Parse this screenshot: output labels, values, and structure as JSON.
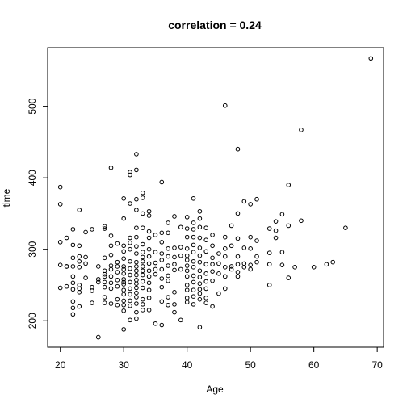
{
  "chart_data": {
    "type": "scatter",
    "title": "correlation = 0.24",
    "xlabel": "Age",
    "ylabel": "time",
    "xlim": [
      18.0,
      71.0
    ],
    "ylim": [
      163,
      582
    ],
    "xticks": [
      20,
      30,
      40,
      50,
      60,
      70
    ],
    "yticks": [
      200,
      300,
      400,
      500
    ],
    "grid": false,
    "legend": "none",
    "points": [
      [
        20,
        387
      ],
      [
        20,
        363
      ],
      [
        20,
        310
      ],
      [
        20,
        278
      ],
      [
        20,
        246
      ],
      [
        21,
        276
      ],
      [
        21,
        248
      ],
      [
        21,
        316
      ],
      [
        21,
        276
      ],
      [
        22,
        328
      ],
      [
        22,
        306
      ],
      [
        22,
        288
      ],
      [
        22,
        276
      ],
      [
        22,
        262
      ],
      [
        22,
        253
      ],
      [
        22,
        244
      ],
      [
        22,
        227
      ],
      [
        22,
        218
      ],
      [
        22,
        209
      ],
      [
        23,
        355
      ],
      [
        23,
        305
      ],
      [
        23,
        290
      ],
      [
        23,
        283
      ],
      [
        23,
        275
      ],
      [
        23,
        250
      ],
      [
        23,
        245
      ],
      [
        23,
        240
      ],
      [
        23,
        220
      ],
      [
        24,
        324
      ],
      [
        24,
        289
      ],
      [
        24,
        280
      ],
      [
        24,
        260
      ],
      [
        25,
        328
      ],
      [
        25,
        247
      ],
      [
        25,
        242
      ],
      [
        25,
        225
      ],
      [
        26,
        276
      ],
      [
        26,
        258
      ],
      [
        26,
        254
      ],
      [
        26,
        177
      ],
      [
        27,
        332
      ],
      [
        27,
        329
      ],
      [
        27,
        288
      ],
      [
        27,
        270
      ],
      [
        27,
        265
      ],
      [
        27,
        262
      ],
      [
        27,
        254
      ],
      [
        27,
        247
      ],
      [
        27,
        233
      ],
      [
        27,
        225
      ],
      [
        28,
        414
      ],
      [
        28,
        319
      ],
      [
        28,
        305
      ],
      [
        28,
        292
      ],
      [
        28,
        277
      ],
      [
        28,
        272
      ],
      [
        28,
        262
      ],
      [
        28,
        253
      ],
      [
        28,
        245
      ],
      [
        28,
        224
      ],
      [
        29,
        308
      ],
      [
        29,
        282
      ],
      [
        29,
        276
      ],
      [
        29,
        268
      ],
      [
        29,
        257
      ],
      [
        29,
        248
      ],
      [
        29,
        230
      ],
      [
        29,
        222
      ],
      [
        30,
        371
      ],
      [
        30,
        343
      ],
      [
        30,
        305
      ],
      [
        30,
        297
      ],
      [
        30,
        287
      ],
      [
        30,
        276
      ],
      [
        30,
        272
      ],
      [
        30,
        266
      ],
      [
        30,
        258
      ],
      [
        30,
        254
      ],
      [
        30,
        251
      ],
      [
        30,
        243
      ],
      [
        30,
        237
      ],
      [
        30,
        228
      ],
      [
        30,
        222
      ],
      [
        30,
        214
      ],
      [
        30,
        188
      ],
      [
        31,
        408
      ],
      [
        31,
        404
      ],
      [
        31,
        364
      ],
      [
        31,
        316
      ],
      [
        31,
        309
      ],
      [
        31,
        300
      ],
      [
        31,
        283
      ],
      [
        31,
        273
      ],
      [
        31,
        264
      ],
      [
        31,
        254
      ],
      [
        31,
        245
      ],
      [
        31,
        237
      ],
      [
        31,
        228
      ],
      [
        31,
        221
      ],
      [
        31,
        201
      ],
      [
        32,
        433
      ],
      [
        32,
        411
      ],
      [
        32,
        370
      ],
      [
        32,
        355
      ],
      [
        32,
        330
      ],
      [
        32,
        317
      ],
      [
        32,
        304
      ],
      [
        32,
        294
      ],
      [
        32,
        282
      ],
      [
        32,
        276
      ],
      [
        32,
        270
      ],
      [
        32,
        264
      ],
      [
        32,
        257
      ],
      [
        32,
        252
      ],
      [
        32,
        246
      ],
      [
        32,
        239
      ],
      [
        32,
        233
      ],
      [
        32,
        224
      ],
      [
        32,
        212
      ],
      [
        32,
        203
      ],
      [
        33,
        379
      ],
      [
        33,
        372
      ],
      [
        33,
        350
      ],
      [
        33,
        330
      ],
      [
        33,
        307
      ],
      [
        33,
        296
      ],
      [
        33,
        289
      ],
      [
        33,
        283
      ],
      [
        33,
        276
      ],
      [
        33,
        270
      ],
      [
        33,
        264
      ],
      [
        33,
        255
      ],
      [
        33,
        246
      ],
      [
        33,
        230
      ],
      [
        33,
        223
      ],
      [
        33,
        215
      ],
      [
        34,
        353
      ],
      [
        34,
        347
      ],
      [
        34,
        325
      ],
      [
        34,
        316
      ],
      [
        34,
        300
      ],
      [
        34,
        290
      ],
      [
        34,
        280
      ],
      [
        34,
        270
      ],
      [
        34,
        262
      ],
      [
        34,
        253
      ],
      [
        34,
        243
      ],
      [
        34,
        232
      ],
      [
        34,
        215
      ],
      [
        35,
        320
      ],
      [
        35,
        296
      ],
      [
        35,
        281
      ],
      [
        35,
        272
      ],
      [
        35,
        265
      ],
      [
        35,
        196
      ],
      [
        36,
        394
      ],
      [
        36,
        323
      ],
      [
        36,
        310
      ],
      [
        36,
        294
      ],
      [
        36,
        285
      ],
      [
        36,
        272
      ],
      [
        36,
        259
      ],
      [
        36,
        247
      ],
      [
        36,
        227
      ],
      [
        36,
        194
      ],
      [
        37,
        337
      ],
      [
        37,
        323
      ],
      [
        37,
        301
      ],
      [
        37,
        290
      ],
      [
        37,
        277
      ],
      [
        37,
        263
      ],
      [
        37,
        256
      ],
      [
        37,
        233
      ],
      [
        37,
        222
      ],
      [
        38,
        346
      ],
      [
        38,
        302
      ],
      [
        38,
        289
      ],
      [
        38,
        279
      ],
      [
        38,
        271
      ],
      [
        38,
        240
      ],
      [
        38,
        223
      ],
      [
        38,
        212
      ],
      [
        39,
        331
      ],
      [
        39,
        303
      ],
      [
        39,
        291
      ],
      [
        39,
        272
      ],
      [
        39,
        201
      ],
      [
        40,
        345
      ],
      [
        40,
        329
      ],
      [
        40,
        317
      ],
      [
        40,
        301
      ],
      [
        40,
        291
      ],
      [
        40,
        285
      ],
      [
        40,
        277
      ],
      [
        40,
        270
      ],
      [
        40,
        262
      ],
      [
        40,
        250
      ],
      [
        40,
        243
      ],
      [
        40,
        232
      ],
      [
        40,
        226
      ],
      [
        41,
        371
      ],
      [
        41,
        337
      ],
      [
        41,
        328
      ],
      [
        41,
        317
      ],
      [
        41,
        306
      ],
      [
        41,
        296
      ],
      [
        41,
        283
      ],
      [
        41,
        275
      ],
      [
        41,
        263
      ],
      [
        41,
        254
      ],
      [
        41,
        243
      ],
      [
        41,
        234
      ],
      [
        41,
        223
      ],
      [
        42,
        353
      ],
      [
        42,
        343
      ],
      [
        42,
        331
      ],
      [
        42,
        316
      ],
      [
        42,
        302
      ],
      [
        42,
        291
      ],
      [
        42,
        282
      ],
      [
        42,
        270
      ],
      [
        42,
        261
      ],
      [
        42,
        252
      ],
      [
        42,
        244
      ],
      [
        42,
        238
      ],
      [
        42,
        230
      ],
      [
        42,
        191
      ],
      [
        43,
        330
      ],
      [
        43,
        313
      ],
      [
        43,
        297
      ],
      [
        43,
        279
      ],
      [
        43,
        266
      ],
      [
        43,
        255
      ],
      [
        43,
        245
      ],
      [
        43,
        232
      ],
      [
        43,
        225
      ],
      [
        44,
        320
      ],
      [
        44,
        305
      ],
      [
        44,
        288
      ],
      [
        44,
        279
      ],
      [
        44,
        269
      ],
      [
        44,
        256
      ],
      [
        44,
        220
      ],
      [
        45,
        294
      ],
      [
        45,
        280
      ],
      [
        45,
        266
      ],
      [
        45,
        238
      ],
      [
        46,
        501
      ],
      [
        46,
        317
      ],
      [
        46,
        301
      ],
      [
        46,
        290
      ],
      [
        46,
        275
      ],
      [
        46,
        262
      ],
      [
        46,
        245
      ],
      [
        47,
        333
      ],
      [
        47,
        305
      ],
      [
        47,
        276
      ],
      [
        47,
        272
      ],
      [
        48,
        440
      ],
      [
        48,
        350
      ],
      [
        48,
        315
      ],
      [
        48,
        290
      ],
      [
        48,
        279
      ],
      [
        48,
        268
      ],
      [
        48,
        262
      ],
      [
        49,
        367
      ],
      [
        49,
        302
      ],
      [
        49,
        280
      ],
      [
        49,
        275
      ],
      [
        50,
        363
      ],
      [
        50,
        317
      ],
      [
        50,
        301
      ],
      [
        50,
        278
      ],
      [
        50,
        272
      ],
      [
        51,
        370
      ],
      [
        51,
        312
      ],
      [
        51,
        290
      ],
      [
        51,
        282
      ],
      [
        53,
        329
      ],
      [
        53,
        295
      ],
      [
        53,
        279
      ],
      [
        53,
        250
      ],
      [
        54,
        339
      ],
      [
        54,
        326
      ],
      [
        54,
        316
      ],
      [
        55,
        349
      ],
      [
        55,
        296
      ],
      [
        55,
        278
      ],
      [
        56,
        390
      ],
      [
        56,
        333
      ],
      [
        56,
        260
      ],
      [
        57,
        275
      ],
      [
        58,
        467
      ],
      [
        58,
        340
      ],
      [
        60,
        275
      ],
      [
        62,
        279
      ],
      [
        63,
        282
      ],
      [
        65,
        330
      ],
      [
        69,
        567
      ]
    ]
  }
}
